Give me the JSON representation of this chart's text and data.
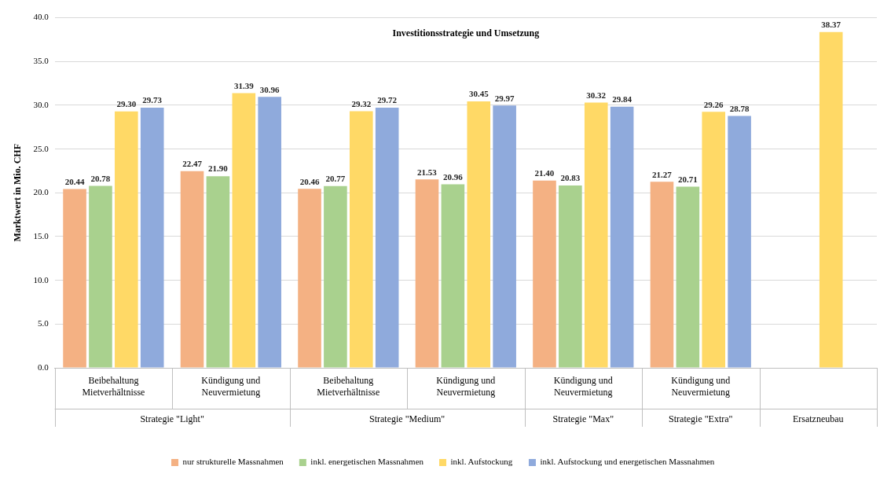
{
  "chart_data": {
    "type": "bar",
    "title": "Investitionsstrategie und Umsetzung",
    "ylabel": "Marktwert in Mio. CHF",
    "categories": [
      "Beibehaltung Mietverhältnisse",
      "Kündigung und Neuvermietung",
      "Beibehaltung Mietverhältnisse",
      "Kündigung und Neuvermietung",
      "Kündigung und Neuvermietung",
      "Kündigung und Neuvermietung",
      null
    ],
    "annotations": [
      "Strategie \"Light\"",
      "Strategie \"Medium\"",
      "Strategie \"Max\"",
      "Strategie \"Extra\"",
      "Ersatzneubau"
    ],
    "series": [
      {
        "name": "nur strukturelle Massnahmen",
        "color": "#f4b183",
        "values": [
          20.44,
          22.47,
          20.46,
          21.53,
          21.4,
          21.27,
          null
        ],
        "value_labels": [
          "20.44",
          "22.47",
          "20.46",
          "21.53",
          "21.40",
          "21.27",
          null
        ]
      },
      {
        "name": "inkl. energetischen Massnahmen",
        "color": "#a9d18e",
        "values": [
          20.78,
          21.9,
          20.77,
          20.96,
          20.83,
          20.71,
          null
        ],
        "value_labels": [
          "20.78",
          "21.90",
          "20.77",
          "20.96",
          "20.83",
          "20.71",
          null
        ]
      },
      {
        "name": "inkl. Aufstockung",
        "color": "#ffd966",
        "values": [
          29.3,
          31.39,
          29.32,
          30.45,
          30.32,
          29.26,
          38.37
        ],
        "value_labels": [
          "29.30",
          "31.39",
          "29.32",
          "30.45",
          "30.32",
          "29.26",
          "38.37"
        ]
      },
      {
        "name": "inkl. Aufstockung und energetischen Massnahmen",
        "color": "#8faadc",
        "values": [
          29.73,
          30.96,
          29.72,
          29.97,
          29.84,
          28.78,
          null
        ],
        "value_labels": [
          "29.73",
          "30.96",
          "29.72",
          "29.97",
          "29.84",
          "28.78",
          null
        ]
      }
    ],
    "ylim": [
      0,
      40
    ],
    "yticks": [
      {
        "value": 0,
        "label": "0.0"
      },
      {
        "value": 5,
        "label": "5.0"
      },
      {
        "value": 10,
        "label": "10.0"
      },
      {
        "value": 15,
        "label": "15.0"
      },
      {
        "value": 20,
        "label": "20.0"
      },
      {
        "value": 25,
        "label": "25.0"
      },
      {
        "value": 30,
        "label": "30.0"
      },
      {
        "value": 35,
        "label": "35.0"
      },
      {
        "value": 40,
        "label": "40.0"
      }
    ],
    "grid": "y",
    "legend": "bottom"
  }
}
